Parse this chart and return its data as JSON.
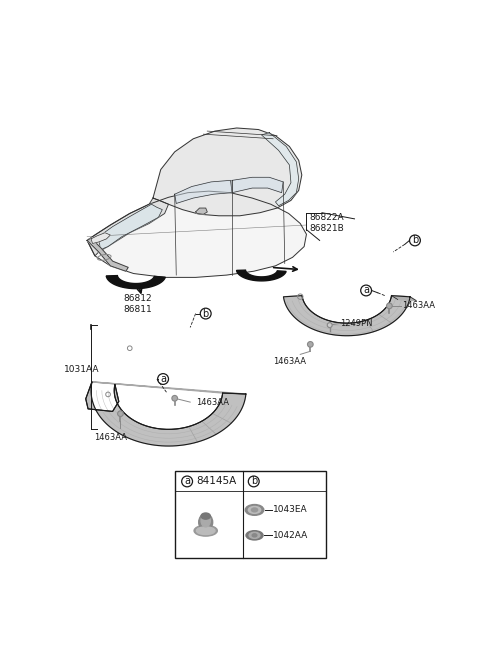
{
  "bg_color": "#ffffff",
  "fig_width": 4.8,
  "fig_height": 6.56,
  "dpi": 100,
  "colors": {
    "line": "#1a1a1a",
    "part_fill_light": "#d8d8d8",
    "part_fill_mid": "#b0b0b0",
    "part_fill_dark": "#888888",
    "part_fill_darker": "#606060",
    "wheel_black": "#111111",
    "text": "#1a1a1a",
    "box_bg": "#ffffff",
    "box_border": "#1a1a1a",
    "fastener_color": "#888888",
    "car_body": "#f5f5f5",
    "car_roof": "#e8e8e8",
    "car_line": "#333333"
  },
  "labels": {
    "part_a_front": "86812\n86811",
    "part_a_rear": "86822A\n86821B",
    "bracket_left": "1031AA",
    "fastener_screw": "1463AA",
    "fastener_nut": "1249PN",
    "part_84145A": "84145A",
    "part_1043EA": "1043EA",
    "part_1042AA": "1042AA"
  }
}
